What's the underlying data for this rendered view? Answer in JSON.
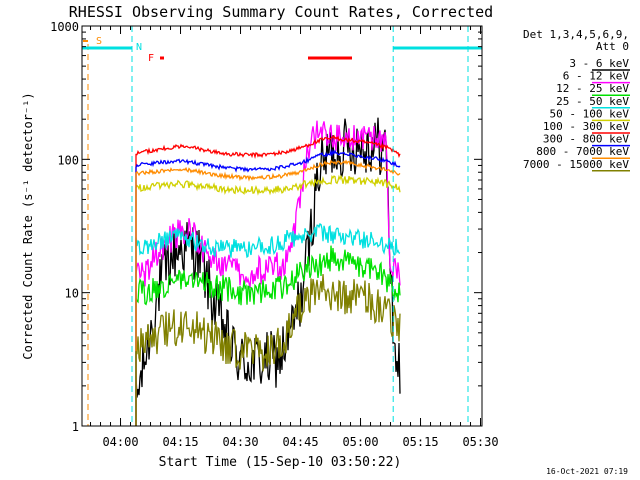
{
  "chart_data": {
    "type": "line",
    "title": "RHESSI Observing Summary Count Rates, Corrected",
    "xlabel": "Start Time (15-Sep-10 03:50:22)",
    "ylabel": "Corrected Count Rate (s⁻¹ detector⁻¹)",
    "x_unit": "minutes after 03:50:22 UT",
    "xlim": [
      0,
      100
    ],
    "ylim": [
      1,
      1000
    ],
    "yscale": "log",
    "x_ticks": [
      {
        "label": "04:00",
        "minutes": 9.63
      },
      {
        "label": "04:15",
        "minutes": 24.63
      },
      {
        "label": "04:30",
        "minutes": 39.63
      },
      {
        "label": "04:45",
        "minutes": 54.63
      },
      {
        "label": "05:00",
        "minutes": 69.63
      },
      {
        "label": "05:15",
        "minutes": 84.63
      },
      {
        "label": "05:30",
        "minutes": 99.63
      }
    ],
    "y_ticks": [
      {
        "label": "1",
        "value": 1
      },
      {
        "label": "10",
        "value": 10
      },
      {
        "label": "100",
        "value": 100
      },
      {
        "label": "1000",
        "value": 1000
      }
    ],
    "legend_header": [
      "Det 1,3,4,5,6,9,",
      "Att 0"
    ],
    "series": [
      {
        "name": "3 - 6 keV",
        "color": "#000000",
        "noise": 0.45,
        "points": [
          [
            13.5,
            1.5
          ],
          [
            15,
            2.5
          ],
          [
            17,
            5
          ],
          [
            19,
            10
          ],
          [
            21,
            15
          ],
          [
            23,
            20
          ],
          [
            25,
            22
          ],
          [
            27,
            22
          ],
          [
            29,
            20
          ],
          [
            31,
            13
          ],
          [
            33,
            8
          ],
          [
            35,
            6
          ],
          [
            37,
            4
          ],
          [
            40,
            3
          ],
          [
            45,
            3
          ],
          [
            49,
            3.2
          ],
          [
            51,
            4
          ],
          [
            53,
            6
          ],
          [
            55,
            10
          ],
          [
            57,
            25
          ],
          [
            59,
            80
          ],
          [
            62,
            115
          ],
          [
            66,
            125
          ],
          [
            70,
            130
          ],
          [
            74,
            128
          ],
          [
            76,
            120
          ],
          [
            77,
            20
          ],
          [
            78,
            4
          ],
          [
            79.5,
            2.5
          ]
        ]
      },
      {
        "name": "6 - 12 keV",
        "color": "#ff00ff",
        "noise": 0.22,
        "points": [
          [
            13.5,
            13
          ],
          [
            16,
            14
          ],
          [
            18,
            18
          ],
          [
            21,
            24
          ],
          [
            24,
            28
          ],
          [
            26,
            30
          ],
          [
            28,
            28
          ],
          [
            30,
            22
          ],
          [
            33,
            18
          ],
          [
            37,
            15
          ],
          [
            42,
            14
          ],
          [
            47,
            15
          ],
          [
            50,
            16
          ],
          [
            52,
            20
          ],
          [
            54,
            40
          ],
          [
            56,
            100
          ],
          [
            58,
            150
          ],
          [
            61,
            165
          ],
          [
            63,
            145
          ],
          [
            66,
            140
          ],
          [
            70,
            145
          ],
          [
            74,
            140
          ],
          [
            76,
            130
          ],
          [
            77,
            18
          ],
          [
            79.5,
            14
          ]
        ]
      },
      {
        "name": "12 - 25 keV",
        "color": "#00e000",
        "noise": 0.2,
        "points": [
          [
            13.5,
            10
          ],
          [
            17,
            10
          ],
          [
            20,
            11
          ],
          [
            23,
            12.5
          ],
          [
            27,
            13
          ],
          [
            30,
            12
          ],
          [
            34,
            11
          ],
          [
            40,
            10
          ],
          [
            46,
            10
          ],
          [
            50,
            11
          ],
          [
            53,
            13
          ],
          [
            56,
            15
          ],
          [
            59,
            16
          ],
          [
            62,
            18
          ],
          [
            65,
            17
          ],
          [
            68,
            16
          ],
          [
            71,
            15
          ],
          [
            74,
            14
          ],
          [
            77,
            12
          ],
          [
            79.5,
            10
          ]
        ]
      },
      {
        "name": "25 - 50 keV",
        "color": "#00e0e0",
        "noise": 0.15,
        "points": [
          [
            13.5,
            22
          ],
          [
            17,
            23
          ],
          [
            20,
            24
          ],
          [
            23,
            26
          ],
          [
            27,
            25
          ],
          [
            30,
            23
          ],
          [
            35,
            22
          ],
          [
            40,
            21
          ],
          [
            45,
            22
          ],
          [
            50,
            24
          ],
          [
            53,
            26
          ],
          [
            56,
            28
          ],
          [
            59,
            28
          ],
          [
            62,
            27
          ],
          [
            66,
            26
          ],
          [
            70,
            25
          ],
          [
            74,
            24
          ],
          [
            77,
            23
          ],
          [
            79.5,
            22
          ]
        ]
      },
      {
        "name": "50 - 100 keV",
        "color": "#d0d000",
        "noise": 0.06,
        "points": [
          [
            13.5,
            60
          ],
          [
            16,
            62
          ],
          [
            20,
            63
          ],
          [
            24,
            65
          ],
          [
            28,
            64
          ],
          [
            32,
            62
          ],
          [
            36,
            60
          ],
          [
            40,
            59
          ],
          [
            45,
            59
          ],
          [
            50,
            60
          ],
          [
            54,
            63
          ],
          [
            57,
            66
          ],
          [
            60,
            68
          ],
          [
            63,
            70
          ],
          [
            66,
            70
          ],
          [
            70,
            69
          ],
          [
            74,
            67
          ],
          [
            77,
            65
          ],
          [
            79.5,
            60
          ]
        ]
      },
      {
        "name": "100 - 300 keV",
        "color": "#ff0000",
        "noise": 0.03,
        "points": [
          [
            13.5,
            110
          ],
          [
            16,
            115
          ],
          [
            20,
            120
          ],
          [
            24,
            125
          ],
          [
            28,
            122
          ],
          [
            32,
            115
          ],
          [
            36,
            110
          ],
          [
            40,
            108
          ],
          [
            45,
            108
          ],
          [
            50,
            112
          ],
          [
            54,
            120
          ],
          [
            57,
            130
          ],
          [
            60,
            140
          ],
          [
            63,
            145
          ],
          [
            66,
            140
          ],
          [
            70,
            135
          ],
          [
            74,
            128
          ],
          [
            77,
            120
          ],
          [
            79.5,
            108
          ]
        ]
      },
      {
        "name": "300 - 800 keV",
        "color": "#0000ff",
        "noise": 0.03,
        "points": [
          [
            13.5,
            90
          ],
          [
            16,
            92
          ],
          [
            20,
            95
          ],
          [
            24,
            97
          ],
          [
            28,
            94
          ],
          [
            32,
            90
          ],
          [
            36,
            86
          ],
          [
            40,
            84
          ],
          [
            45,
            84
          ],
          [
            50,
            87
          ],
          [
            54,
            93
          ],
          [
            57,
            100
          ],
          [
            60,
            108
          ],
          [
            63,
            112
          ],
          [
            66,
            110
          ],
          [
            70,
            106
          ],
          [
            74,
            100
          ],
          [
            77,
            95
          ],
          [
            79.5,
            88
          ]
        ]
      },
      {
        "name": "800 - 7000 keV",
        "color": "#ff8c00",
        "noise": 0.03,
        "points": [
          [
            13.5,
            78
          ],
          [
            16,
            80
          ],
          [
            20,
            82
          ],
          [
            24,
            84
          ],
          [
            28,
            82
          ],
          [
            32,
            78
          ],
          [
            36,
            75
          ],
          [
            40,
            73
          ],
          [
            45,
            73
          ],
          [
            50,
            75
          ],
          [
            54,
            80
          ],
          [
            57,
            86
          ],
          [
            60,
            92
          ],
          [
            63,
            95
          ],
          [
            66,
            94
          ],
          [
            70,
            90
          ],
          [
            74,
            86
          ],
          [
            77,
            82
          ],
          [
            79.5,
            77
          ]
        ]
      },
      {
        "name": "7000 - 15000 keV",
        "color": "#808000",
        "noise": 0.3,
        "points": [
          [
            13.5,
            4
          ],
          [
            17,
            4.5
          ],
          [
            20,
            5
          ],
          [
            23,
            5.5
          ],
          [
            27,
            5.5
          ],
          [
            30,
            5
          ],
          [
            33,
            4.5
          ],
          [
            37,
            4
          ],
          [
            42,
            3.5
          ],
          [
            47,
            3.5
          ],
          [
            51,
            4.5
          ],
          [
            54,
            7
          ],
          [
            57,
            9
          ],
          [
            60,
            10
          ],
          [
            63,
            10
          ],
          [
            66,
            9.5
          ],
          [
            70,
            9
          ],
          [
            74,
            8
          ],
          [
            77,
            7
          ],
          [
            79.5,
            5.5
          ]
        ]
      }
    ],
    "annotations": {
      "saa": {
        "label": "S",
        "color": "#ff8c00",
        "start": 1.5,
        "end": 1.5
      },
      "night": {
        "label": "N",
        "color": "#00e0e0",
        "intervals": [
          [
            0,
            12.5
          ],
          [
            77.8,
            100
          ]
        ],
        "boundaries": [
          12.5,
          77.8,
          96.5
        ]
      },
      "flare": {
        "label": "F",
        "color": "#ff0000",
        "intervals": [
          [
            19.5,
            20.5
          ],
          [
            56.5,
            67.5
          ]
        ]
      }
    }
  },
  "footer": {
    "date": "16-Oct-2021 07:19"
  }
}
